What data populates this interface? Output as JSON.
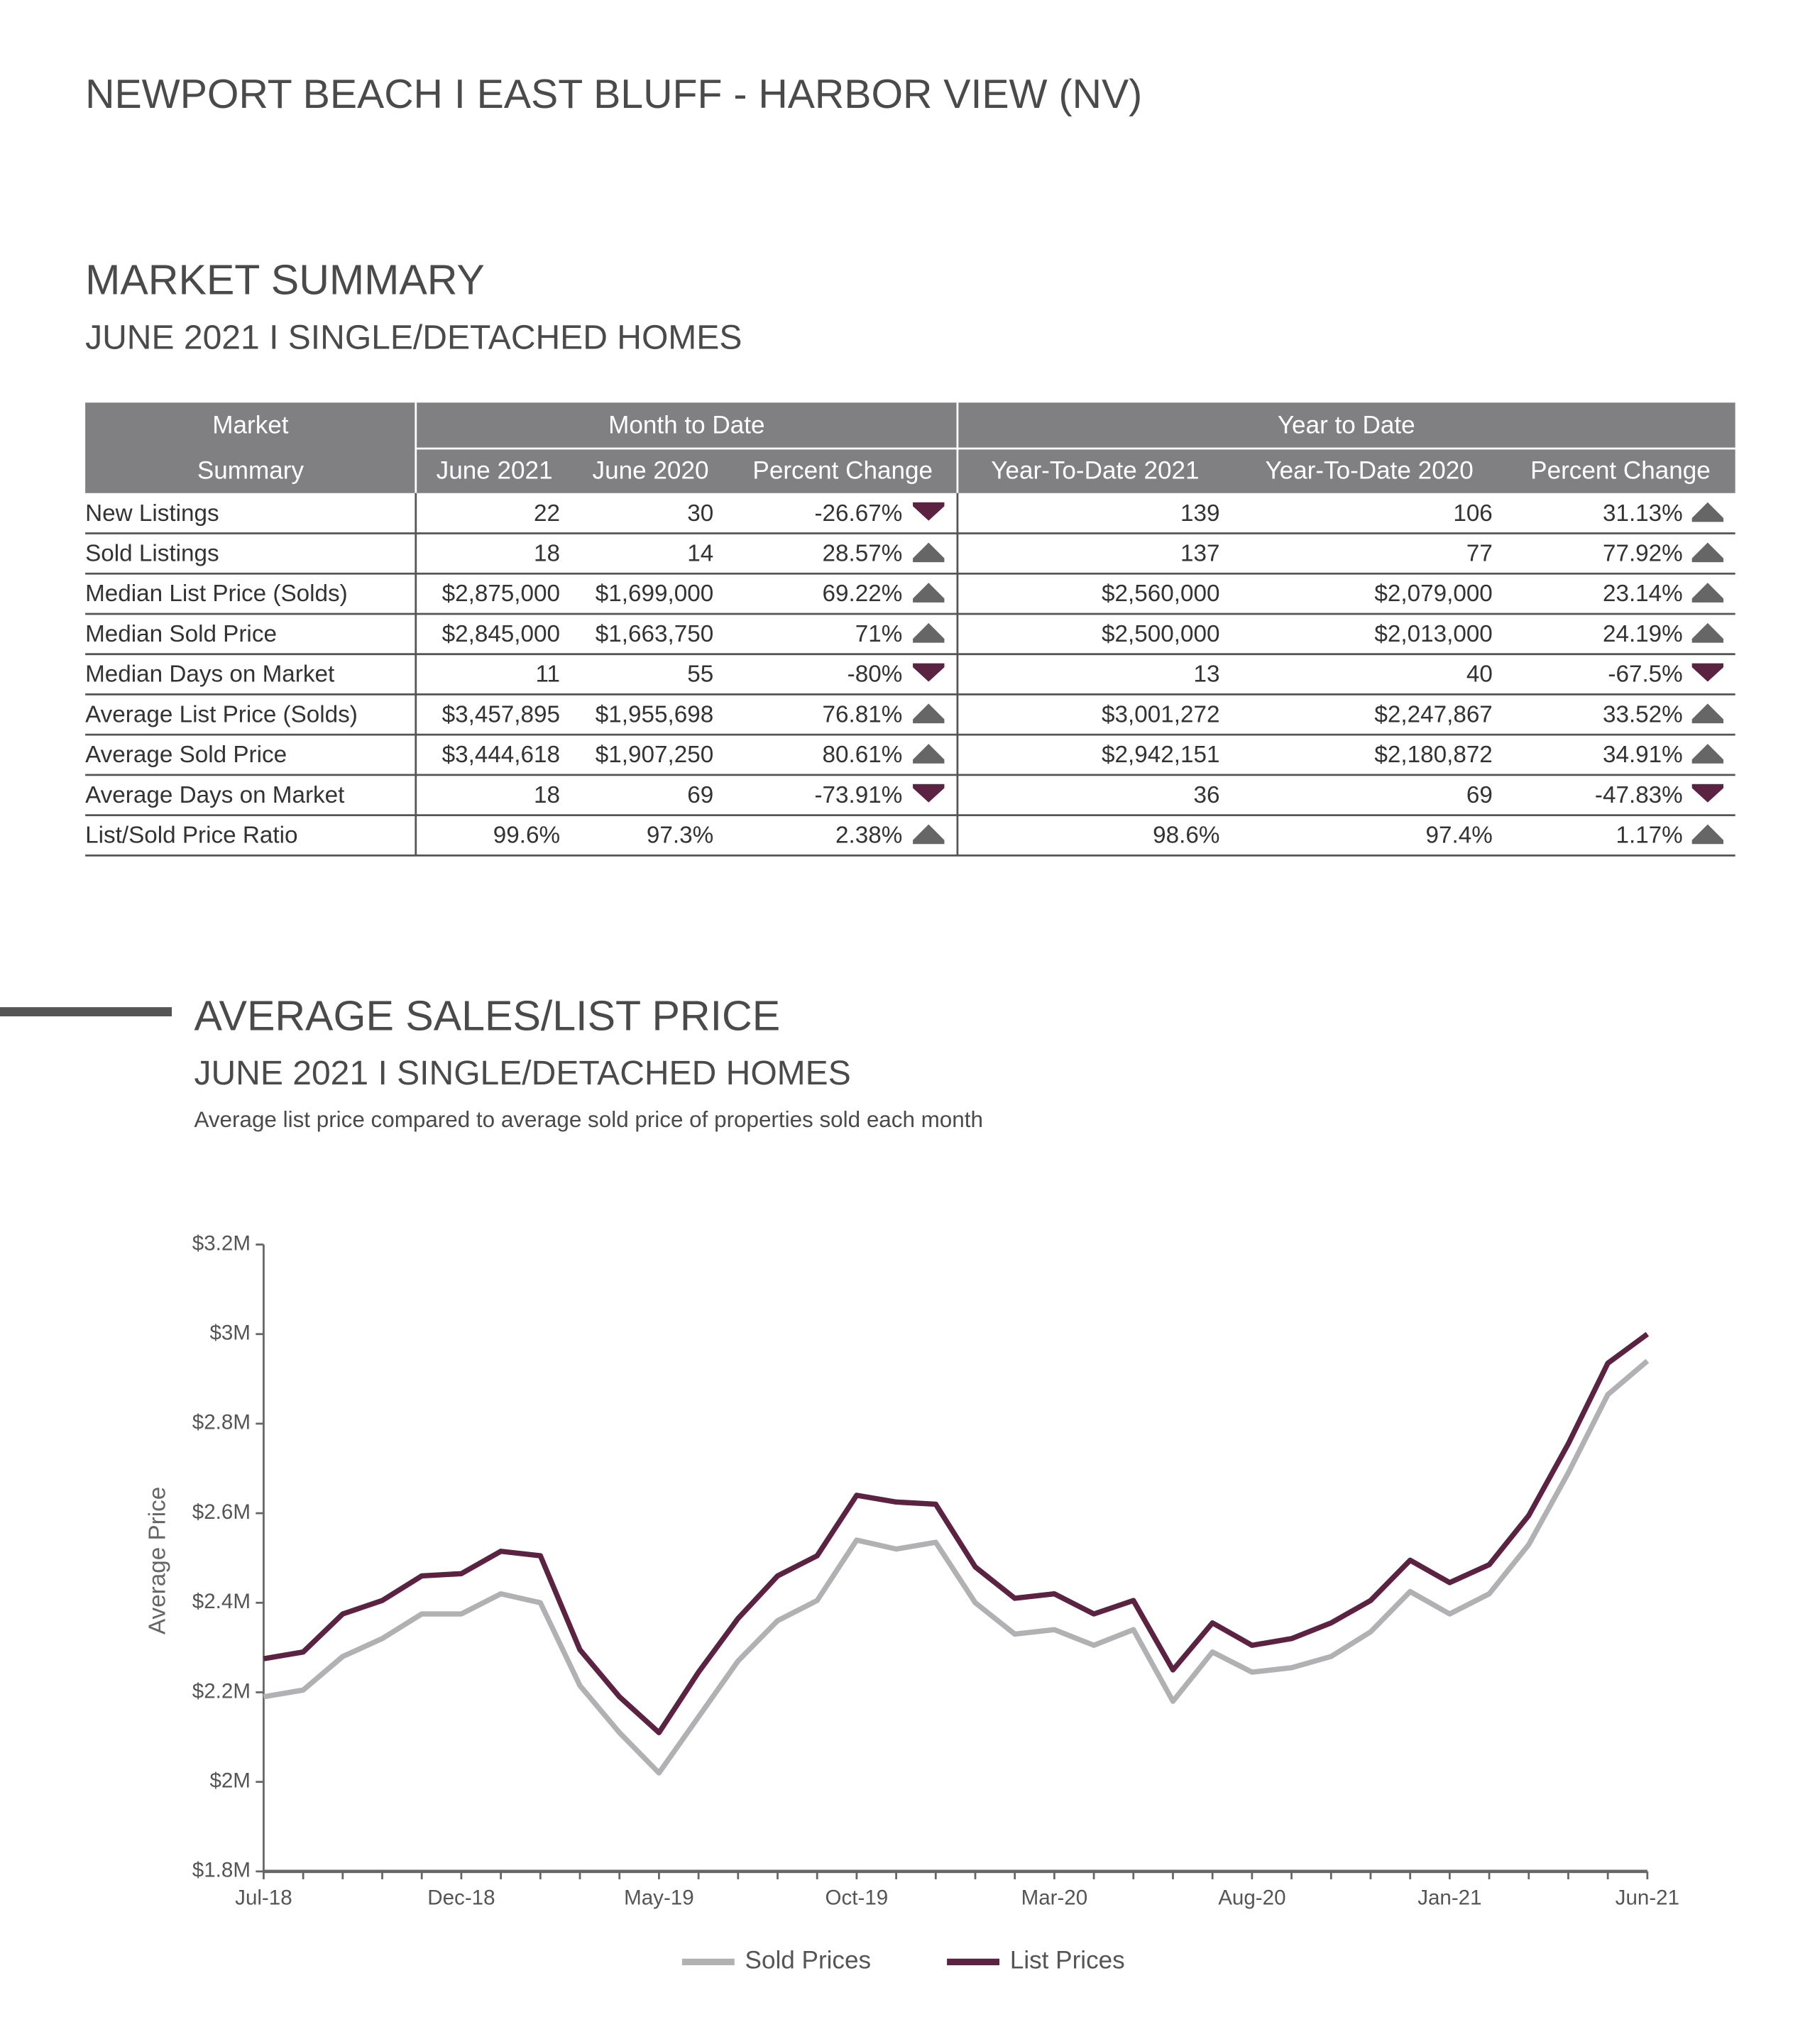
{
  "header": {
    "title": "NEWPORT BEACH I EAST BLUFF - HARBOR VIEW (NV)"
  },
  "summary": {
    "title": "MARKET SUMMARY",
    "subtitle": "JUNE 2021 I SINGLE/DETACHED HOMES"
  },
  "table": {
    "group_headers": [
      "Market",
      "Month to Date",
      "Year to Date"
    ],
    "columns": [
      "Summary",
      "June 2021",
      "June 2020",
      "Percent Change",
      "Year-To-Date 2021",
      "Year-To-Date 2020",
      "Percent Change"
    ],
    "rows": [
      [
        "New Listings",
        "22",
        "30",
        "-26.67%",
        "139",
        "106",
        "31.13%"
      ],
      [
        "Sold Listings",
        "18",
        "14",
        "28.57%",
        "137",
        "77",
        "77.92%"
      ],
      [
        "Median List Price (Solds)",
        "$2,875,000",
        "$1,699,000",
        "69.22%",
        "$2,560,000",
        "$2,079,000",
        "23.14%"
      ],
      [
        "Median Sold Price",
        "$2,845,000",
        "$1,663,750",
        "71%",
        "$2,500,000",
        "$2,013,000",
        "24.19%"
      ],
      [
        "Median Days on Market",
        "11",
        "55",
        "-80%",
        "13",
        "40",
        "-67.5%"
      ],
      [
        "Average List Price (Solds)",
        "$3,457,895",
        "$1,955,698",
        "76.81%",
        "$3,001,272",
        "$2,247,867",
        "33.52%"
      ],
      [
        "Average Sold Price",
        "$3,444,618",
        "$1,907,250",
        "80.61%",
        "$2,942,151",
        "$2,180,872",
        "34.91%"
      ],
      [
        "Average Days on Market",
        "18",
        "69",
        "-73.91%",
        "36",
        "69",
        "-47.83%"
      ],
      [
        "List/Sold Price Ratio",
        "99.6%",
        "97.3%",
        "2.38%",
        "98.6%",
        "97.4%",
        "1.17%"
      ]
    ],
    "trends": [
      [
        "down",
        "up"
      ],
      [
        "up",
        "up"
      ],
      [
        "up",
        "up"
      ],
      [
        "up",
        "up"
      ],
      [
        "down",
        "down"
      ],
      [
        "up",
        "up"
      ],
      [
        "up",
        "up"
      ],
      [
        "down",
        "down"
      ],
      [
        "up",
        "up"
      ]
    ]
  },
  "chart_section": {
    "title": "AVERAGE SALES/LIST PRICE",
    "subtitle": "JUNE 2021 I SINGLE/DETACHED HOMES",
    "description": "Average list price compared to average sold price of properties sold each month"
  },
  "chart_data": {
    "type": "line",
    "y_label": "Average Price",
    "categories": [
      "Jul-18",
      null,
      null,
      null,
      null,
      "Dec-18",
      null,
      null,
      null,
      null,
      "May-19",
      null,
      null,
      null,
      null,
      "Oct-19",
      null,
      null,
      null,
      null,
      "Mar-20",
      null,
      null,
      null,
      null,
      "Aug-20",
      null,
      null,
      null,
      null,
      "Jan-21",
      null,
      null,
      null,
      null,
      "Jun-21"
    ],
    "series": [
      {
        "name": "Sold Prices",
        "color": "#b1b1b4",
        "values": [
          2190000,
          2205000,
          2280000,
          2320000,
          2375000,
          2375000,
          2420000,
          2400000,
          2215000,
          2110000,
          2020000,
          2145000,
          2270000,
          2360000,
          2405000,
          2540000,
          2520000,
          2535000,
          2400000,
          2330000,
          2340000,
          2305000,
          2340000,
          2180000,
          2290000,
          2245000,
          2255000,
          2280000,
          2335000,
          2425000,
          2375000,
          2420000,
          2530000,
          2690000,
          2865000,
          2940000
        ]
      },
      {
        "name": "List Prices",
        "color": "#5b2242",
        "values": [
          2275000,
          2290000,
          2375000,
          2405000,
          2460000,
          2465000,
          2515000,
          2505000,
          2295000,
          2190000,
          2110000,
          2245000,
          2365000,
          2460000,
          2505000,
          2640000,
          2625000,
          2620000,
          2480000,
          2410000,
          2420000,
          2375000,
          2405000,
          2250000,
          2355000,
          2305000,
          2320000,
          2355000,
          2405000,
          2495000,
          2445000,
          2485000,
          2595000,
          2755000,
          2935000,
          3000000
        ]
      }
    ],
    "ylim": [
      1800000,
      3200000
    ],
    "yticks": [
      {
        "value": 1800000,
        "label": "$1.8M"
      },
      {
        "value": 2000000,
        "label": "$2M"
      },
      {
        "value": 2200000,
        "label": "$2.2M"
      },
      {
        "value": 2400000,
        "label": "$2.4M"
      },
      {
        "value": 2600000,
        "label": "$2.6M"
      },
      {
        "value": 2800000,
        "label": "$2.8M"
      },
      {
        "value": 3000000,
        "label": "$3M"
      },
      {
        "value": 3200000,
        "label": "$3.2M"
      }
    ]
  }
}
